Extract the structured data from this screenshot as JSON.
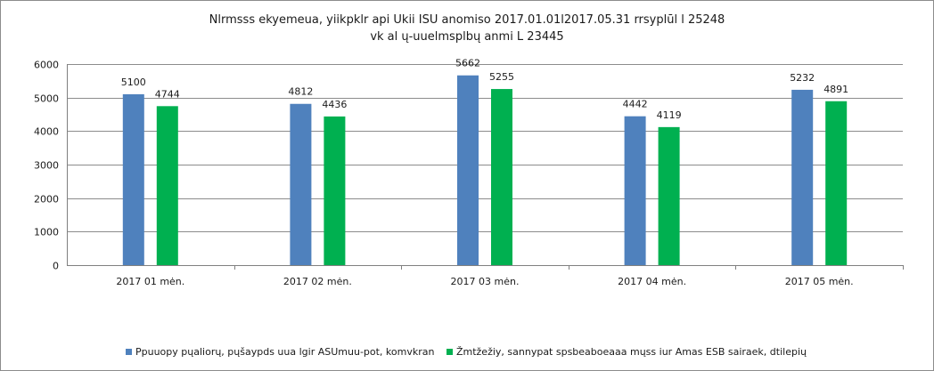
{
  "chart_data": {
    "type": "bar",
    "title": "Nlrmsss ekyemeua, yiikpklr api Ukii ISU anomiso 2017.01.01l2017.05.31  rrsyplūl l 25248",
    "subtitle": "vk al ų-uuelmsplbų anmi L 23445",
    "categories": [
      "2017 01 mėn.",
      "2017 02 mėn.",
      "2017 03 mėn.",
      "2017 04 mėn.",
      "2017 05 mėn."
    ],
    "series": [
      {
        "name": "Ppuuopy pųaliorų, pųšaypds uua lgir ASUmuu-pot, komvkran",
        "color": "#4f81bd",
        "values": [
          5100,
          4812,
          5662,
          4442,
          5232
        ]
      },
      {
        "name": "Žmtžežiy, sannypat spsbeaboeaaa mųss iur Amas ESB sairaek, dtilepių",
        "color": "#00b050",
        "values": [
          4744,
          4436,
          5255,
          4119,
          4891
        ]
      }
    ],
    "yticks": [
      0,
      1000,
      2000,
      3000,
      4000,
      5000,
      6000
    ],
    "ylim": [
      0,
      6000
    ],
    "grid": true,
    "legend_position": "bottom"
  }
}
